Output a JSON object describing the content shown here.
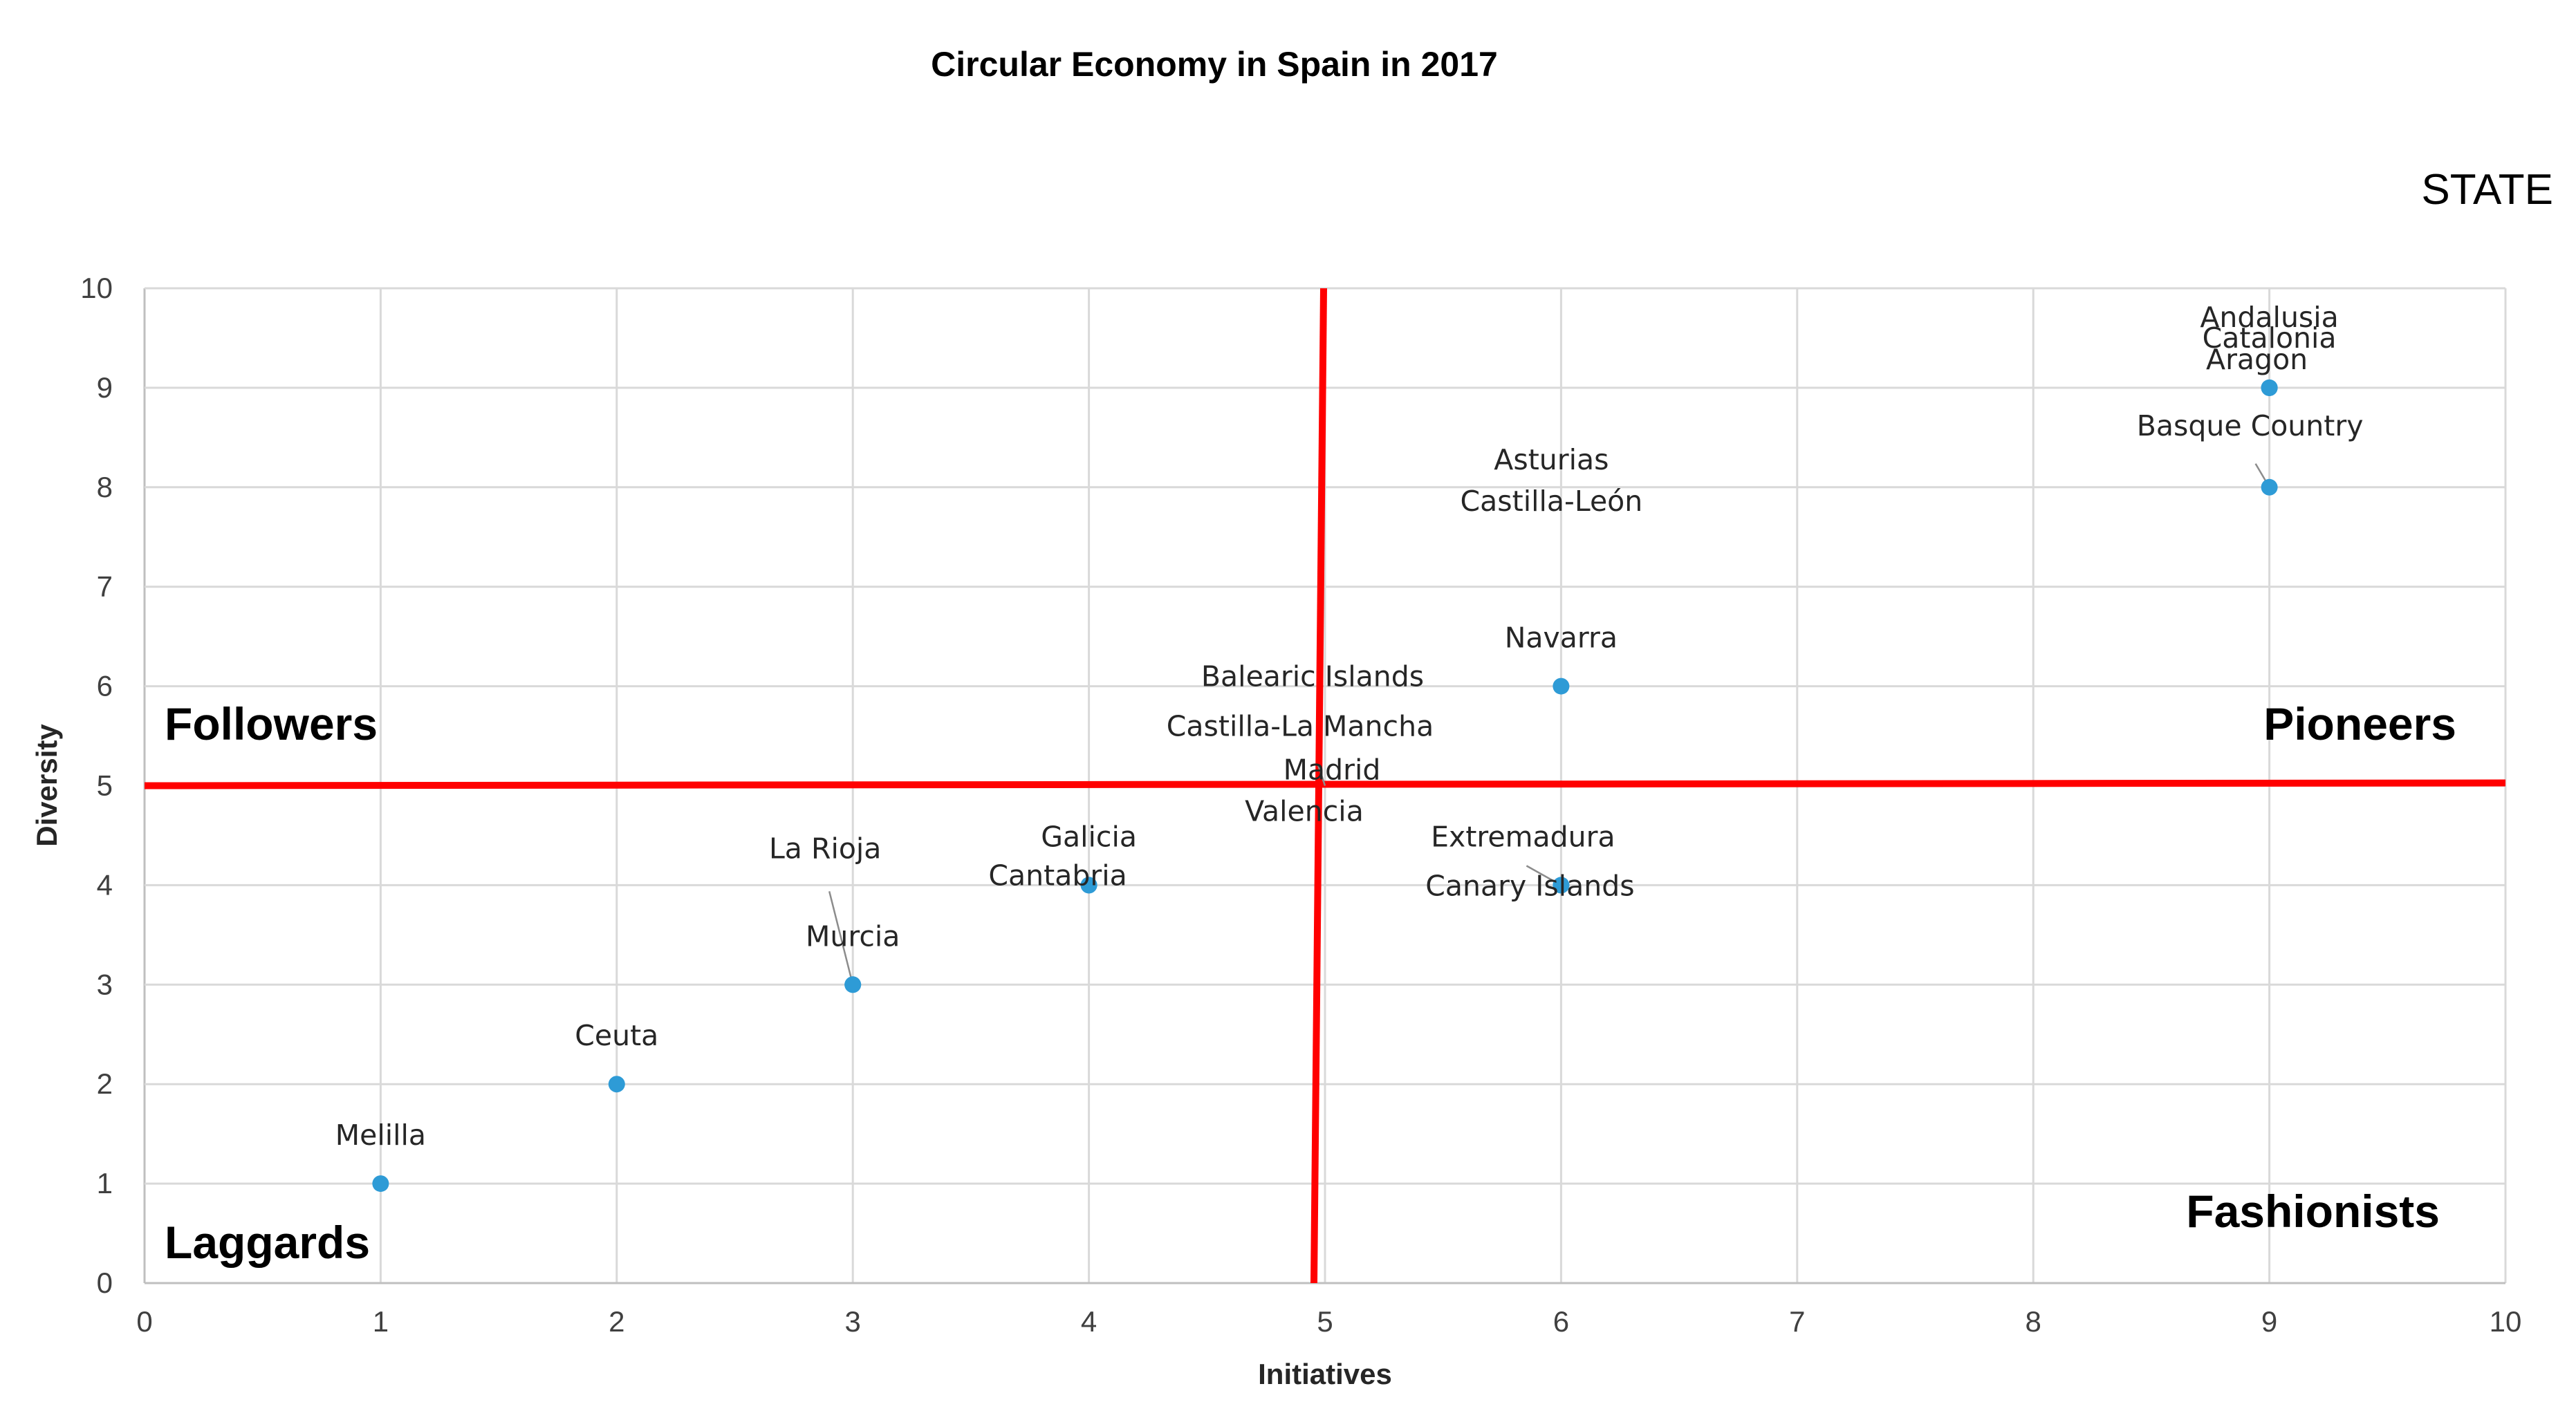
{
  "chart_data": {
    "type": "scatter",
    "title": "Circular Economy in Spain in 2017",
    "corner_label": "STATE",
    "xlabel": "Initiatives",
    "ylabel": "Diversity",
    "xlim": [
      0,
      10
    ],
    "ylim": [
      0,
      10
    ],
    "x_ticks": [
      "0",
      "1",
      "2",
      "3",
      "4",
      "5",
      "6",
      "7",
      "8",
      "9",
      "10"
    ],
    "y_ticks": [
      "0",
      "1",
      "2",
      "3",
      "4",
      "5",
      "6",
      "7",
      "8",
      "9",
      "10"
    ],
    "grid": true,
    "legend": "none",
    "point_color": "#2e9bd6",
    "divider_color": "#ff0000",
    "dividers": {
      "x": 5,
      "y": 5
    },
    "quadrants": {
      "top_left": "Followers",
      "top_right": "Pioneers",
      "bottom_left": "Laggards",
      "bottom_right": "Fashionists"
    },
    "points": [
      {
        "label": "Andalusia",
        "x": 9,
        "y": 9
      },
      {
        "label": "Catalonia",
        "x": 9,
        "y": 9
      },
      {
        "label": "Aragon",
        "x": 9,
        "y": 9
      },
      {
        "label": "Basque Country",
        "x": 9,
        "y": 8
      },
      {
        "label": "Asturias",
        "x": 6,
        "y": 7.5
      },
      {
        "label": "Castilla-León",
        "x": 6,
        "y": 7.5
      },
      {
        "label": "Navarra",
        "x": 6,
        "y": 6
      },
      {
        "label": "Balearic Islands",
        "x": 5,
        "y": 5
      },
      {
        "label": "Castilla-La Mancha",
        "x": 5,
        "y": 5
      },
      {
        "label": "Madrid",
        "x": 5,
        "y": 5
      },
      {
        "label": "Valencia",
        "x": 5,
        "y": 5
      },
      {
        "label": "Galicia",
        "x": 4,
        "y": 4
      },
      {
        "label": "Cantabria",
        "x": 4,
        "y": 4
      },
      {
        "label": "Extremadura",
        "x": 6,
        "y": 4
      },
      {
        "label": "Canary Islands",
        "x": 6,
        "y": 4
      },
      {
        "label": "La Rioja",
        "x": 3,
        "y": 3
      },
      {
        "label": "Murcia",
        "x": 3,
        "y": 3
      },
      {
        "label": "Ceuta",
        "x": 2,
        "y": 2
      },
      {
        "label": "Melilla",
        "x": 1,
        "y": 1
      }
    ]
  }
}
